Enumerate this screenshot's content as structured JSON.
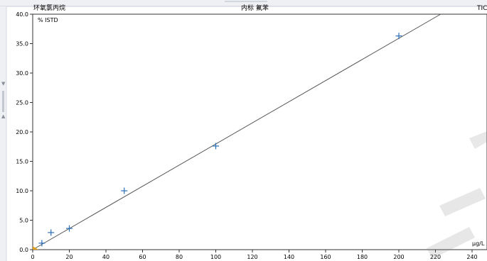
{
  "header": {
    "compound": "环氧氯丙烷",
    "internal_standard": "内标 氟苯",
    "signal": "TIC"
  },
  "chart_data": {
    "type": "scatter",
    "ylabel": "% ISTD",
    "xunit": "μg/L",
    "xlim": [
      0,
      250
    ],
    "ylim": [
      0,
      40
    ],
    "x_ticks": [
      0,
      20,
      40,
      60,
      80,
      100,
      120,
      140,
      160,
      180,
      200,
      220,
      240
    ],
    "x_tick_labels": [
      "0",
      "20",
      "40",
      "60",
      "80",
      "100",
      "120",
      "140",
      "160",
      "180",
      "200",
      "220",
      "240"
    ],
    "y_ticks": [
      0,
      5,
      10,
      15,
      20,
      25,
      30,
      35,
      40
    ],
    "y_tick_labels": [
      "0.0",
      "5.0",
      "10.0",
      "15.0",
      "20.0",
      "25.0",
      "30.0",
      "35.0",
      "40.0"
    ],
    "series": [
      {
        "points": [
          {
            "x": 5,
            "y": 1.1
          },
          {
            "x": 10,
            "y": 2.9
          },
          {
            "x": 20,
            "y": 3.6
          },
          {
            "x": 50,
            "y": 10.0
          },
          {
            "x": 100,
            "y": 17.6
          },
          {
            "x": 200,
            "y": 36.3
          }
        ]
      }
    ],
    "fit_line": {
      "slope": 0.1795,
      "intercept": 0.0
    },
    "colors": {
      "marker": "#2a6fb8",
      "fit": "#555555",
      "axis": "#333333",
      "origin_marker": "#e0a020"
    }
  }
}
